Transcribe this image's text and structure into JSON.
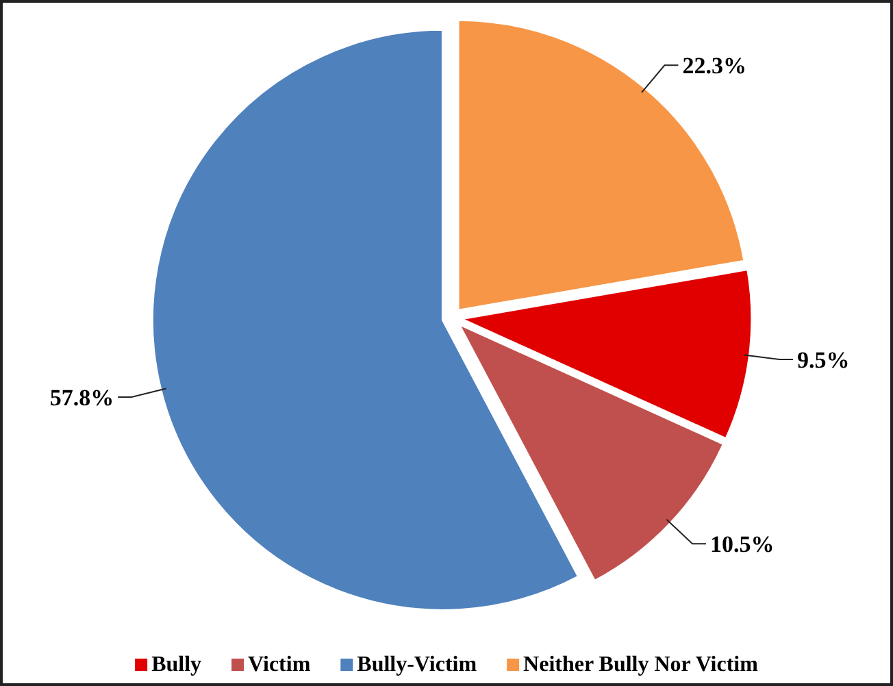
{
  "chart_data": {
    "type": "pie",
    "categories": [
      "Bully",
      "Victim",
      "Bully-Victim",
      "Neither Bully Nor Victim"
    ],
    "values": [
      9.5,
      10.5,
      57.8,
      22.3
    ],
    "colors": [
      "#e00000",
      "#c0504d",
      "#4f81bd",
      "#f79646"
    ],
    "value_labels": [
      "9.5%",
      "10.5%",
      "57.8%",
      "22.3%"
    ],
    "legend": "bottom"
  }
}
